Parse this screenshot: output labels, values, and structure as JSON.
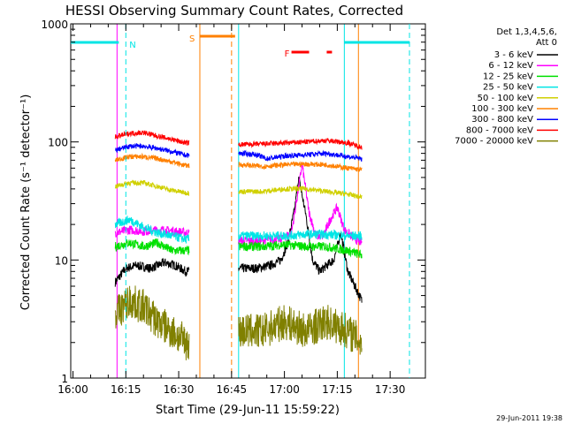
{
  "chart_data": {
    "type": "line",
    "title": "HESSI Observing Summary Count Rates, Corrected",
    "xlabel": "Start Time (29-Jun-11 15:59:22)",
    "ylabel": "Corrected Count Rate (s⁻¹ detector⁻¹)",
    "yscale": "log",
    "xlim": [
      "15:59:22",
      "17:40:00"
    ],
    "ylim": [
      1,
      1000
    ],
    "xticks": [
      "16:00",
      "16:15",
      "16:30",
      "16:45",
      "17:00",
      "17:15",
      "17:30"
    ],
    "yticks": [
      "1",
      "10",
      "100",
      "1000"
    ],
    "legend_title": [
      "Det 1,3,4,5,6,",
      "Att 0"
    ],
    "legend_placement": "right",
    "grid": false,
    "timestamp": "29-Jun-2011 19:38",
    "flags": [
      {
        "label": "N",
        "color": "#00e5e5"
      },
      {
        "label": "S",
        "color": "#ff8000"
      },
      {
        "label": "F",
        "color": "#ff0000"
      }
    ],
    "series": [
      {
        "name": "3 - 6 keV",
        "color": "#000000",
        "t": [
          "16:12",
          "16:15",
          "16:18",
          "16:22",
          "16:26",
          "16:29",
          "16:32",
          "16:48",
          "16:52",
          "16:56",
          "16:59",
          "17:01",
          "17:03",
          "17:04",
          "17:06",
          "17:08",
          "17:10",
          "17:12",
          "17:14",
          "17:16",
          "17:18",
          "17:20",
          "17:22"
        ],
        "v": [
          6.5,
          8.5,
          9,
          8.5,
          9.5,
          9,
          8,
          8.5,
          8.5,
          9,
          10,
          14,
          28,
          50,
          25,
          10,
          8,
          9,
          10,
          17,
          8,
          6,
          4.5
        ]
      },
      {
        "name": "6 - 12 keV",
        "color": "#ff00ff",
        "t": [
          "16:12",
          "16:16",
          "16:20",
          "16:25",
          "16:29",
          "16:32",
          "16:48",
          "16:52",
          "16:56",
          "16:59",
          "17:02",
          "17:04",
          "17:05",
          "17:07",
          "17:09",
          "17:11",
          "17:13",
          "17:15",
          "17:17",
          "17:20",
          "17:22"
        ],
        "v": [
          17,
          18,
          17.5,
          18,
          17.5,
          17,
          14.5,
          14.5,
          15,
          15,
          17,
          40,
          65,
          25,
          16,
          16,
          22,
          28,
          18,
          15,
          14
        ]
      },
      {
        "name": "12 - 25 keV",
        "color": "#00e000",
        "t": [
          "16:12",
          "16:16",
          "16:20",
          "16:24",
          "16:28",
          "16:32",
          "16:48",
          "16:54",
          "17:00",
          "17:06",
          "17:12",
          "17:18",
          "17:22"
        ],
        "v": [
          13,
          14,
          13,
          14,
          12,
          12,
          13,
          13,
          13.5,
          13,
          13,
          12,
          11
        ]
      },
      {
        "name": "25 - 50 keV",
        "color": "#00e5e5",
        "t": [
          "16:12",
          "16:16",
          "16:20",
          "16:24",
          "16:28",
          "16:32",
          "16:48",
          "16:54",
          "17:00",
          "17:06",
          "17:12",
          "17:18",
          "17:22"
        ],
        "v": [
          20,
          22,
          19,
          17,
          16,
          15,
          16,
          16,
          16,
          16.5,
          16.5,
          16,
          16
        ]
      },
      {
        "name": "50 - 100 keV",
        "color": "#d0d000",
        "t": [
          "16:12",
          "16:16",
          "16:20",
          "16:24",
          "16:28",
          "16:32",
          "16:48",
          "16:54",
          "17:00",
          "17:06",
          "17:12",
          "17:18",
          "17:22"
        ],
        "v": [
          42,
          45,
          45,
          42,
          39,
          37,
          38,
          38,
          40,
          40,
          38,
          36,
          34
        ]
      },
      {
        "name": "100 - 300 keV",
        "color": "#ff8000",
        "t": [
          "16:12",
          "16:16",
          "16:20",
          "16:24",
          "16:28",
          "16:32",
          "16:48",
          "16:54",
          "17:00",
          "17:06",
          "17:12",
          "17:18",
          "17:22"
        ],
        "v": [
          70,
          75,
          75,
          72,
          68,
          63,
          64,
          62,
          64,
          65,
          64,
          60,
          58
        ]
      },
      {
        "name": "300 - 800 keV",
        "color": "#0000ff",
        "t": [
          "16:12",
          "16:16",
          "16:20",
          "16:24",
          "16:28",
          "16:32",
          "16:48",
          "16:52",
          "16:55",
          "17:00",
          "17:06",
          "17:12",
          "17:18",
          "17:22"
        ],
        "v": [
          85,
          92,
          92,
          88,
          83,
          77,
          80,
          78,
          72,
          76,
          78,
          80,
          75,
          72
        ]
      },
      {
        "name": "800 - 7000 keV",
        "color": "#ff0000",
        "t": [
          "16:12",
          "16:16",
          "16:20",
          "16:24",
          "16:28",
          "16:32",
          "16:48",
          "16:54",
          "17:00",
          "17:06",
          "17:12",
          "17:18",
          "17:22"
        ],
        "v": [
          110,
          118,
          120,
          112,
          105,
          98,
          95,
          96,
          98,
          100,
          103,
          98,
          90
        ]
      },
      {
        "name": "7000 - 20000 keV",
        "color": "#808000",
        "t": [
          "16:12",
          "16:16",
          "16:20",
          "16:24",
          "16:28",
          "16:32",
          "16:48",
          "16:54",
          "17:00",
          "17:06",
          "17:12",
          "17:18",
          "17:22"
        ],
        "v": [
          3.5,
          4.5,
          4,
          3,
          2.5,
          2,
          2.5,
          2.5,
          3,
          2.5,
          3,
          2.5,
          2
        ]
      }
    ]
  }
}
